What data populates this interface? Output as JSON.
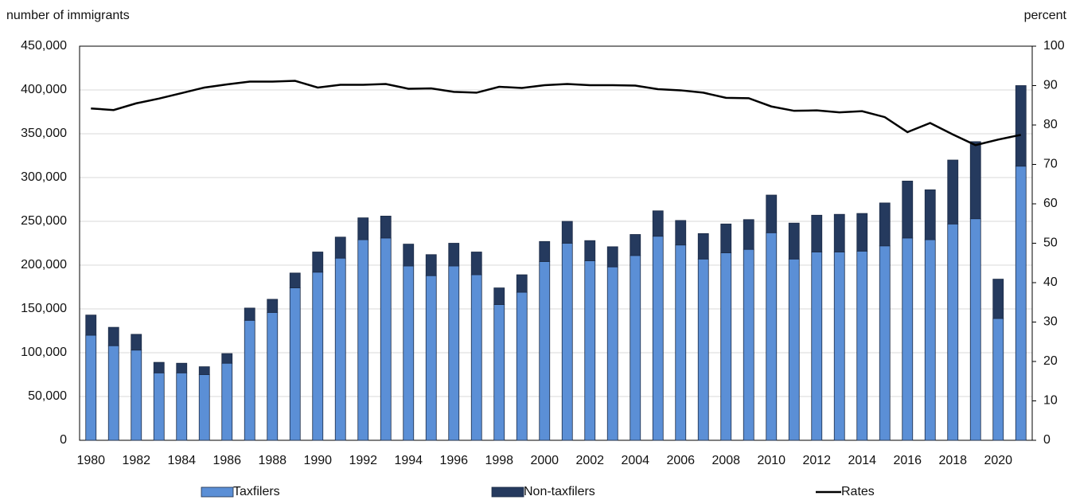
{
  "chart_data": {
    "type": "bar-line",
    "y_label": "number of immigrants",
    "y2_label": "percent",
    "categories": [
      "1980",
      null,
      "1982",
      null,
      "1984",
      null,
      "1986",
      null,
      "1988",
      null,
      "1990",
      null,
      "1992",
      null,
      "1994",
      null,
      "1996",
      null,
      "1998",
      null,
      "2000",
      null,
      "2002",
      null,
      "2004",
      null,
      "2006",
      null,
      "2008",
      null,
      "2010",
      null,
      "2012",
      null,
      "2014",
      null,
      "2016",
      null,
      "2018",
      null,
      "2020",
      null
    ],
    "series": [
      {
        "name": "Taxfilers",
        "type": "bar",
        "color": "#5b8fd6",
        "values": [
          120000,
          108000,
          103000,
          77000,
          77000,
          75000,
          88000,
          137000,
          146000,
          174000,
          192000,
          208000,
          229000,
          231000,
          199000,
          188000,
          199000,
          189000,
          155000,
          169000,
          204000,
          225000,
          205000,
          198000,
          211000,
          233000,
          223000,
          207000,
          214000,
          218000,
          237000,
          207000,
          215000,
          215000,
          216000,
          222000,
          231000,
          229000,
          247000,
          253000,
          139000,
          313000
        ]
      },
      {
        "name": "Non-taxfilers",
        "type": "bar",
        "color": "#253a5e",
        "values": [
          23000,
          21000,
          18000,
          12000,
          11000,
          9000,
          11000,
          14000,
          15000,
          17000,
          23000,
          24000,
          25000,
          25000,
          25000,
          24000,
          26000,
          26000,
          19000,
          20000,
          23000,
          25000,
          23000,
          23000,
          24000,
          29000,
          28000,
          29000,
          33000,
          34000,
          43000,
          41000,
          42000,
          43000,
          43000,
          49000,
          65000,
          57000,
          73000,
          88000,
          45000,
          92000
        ]
      },
      {
        "name": "Rates",
        "type": "line",
        "axis": "y2",
        "color": "#000000",
        "values": [
          84.2,
          83.8,
          85.5,
          86.7,
          88.1,
          89.5,
          90.3,
          91.0,
          91.0,
          91.2,
          89.5,
          90.2,
          90.2,
          90.4,
          89.2,
          89.3,
          88.4,
          88.2,
          89.7,
          89.4,
          90.1,
          90.4,
          90.1,
          90.1,
          90.0,
          89.1,
          88.8,
          88.2,
          86.9,
          86.8,
          84.7,
          83.6,
          83.7,
          83.2,
          83.5,
          82.0,
          78.2,
          80.5,
          77.6,
          74.9,
          76.3,
          77.5
        ]
      }
    ],
    "ylim": [
      0,
      450000
    ],
    "yticks": [
      0,
      {
        "value": 50000,
        "label": "50,000"
      },
      {
        "value": 100000,
        "label": "100,000"
      },
      {
        "value": 150000,
        "label": "150,000"
      },
      {
        "value": 200000,
        "label": "200,000"
      },
      {
        "value": 250000,
        "label": "250,000"
      },
      {
        "value": 300000,
        "label": "300,000"
      },
      {
        "value": 350000,
        "label": "350,000"
      },
      {
        "value": 400000,
        "label": "400,000"
      },
      {
        "value": 450000,
        "label": "450,000"
      }
    ],
    "y2lim": [
      0,
      100
    ],
    "y2ticks": [
      0,
      10,
      20,
      30,
      40,
      50,
      60,
      70,
      80,
      90,
      100
    ],
    "grid": true,
    "legend": "bottom"
  }
}
